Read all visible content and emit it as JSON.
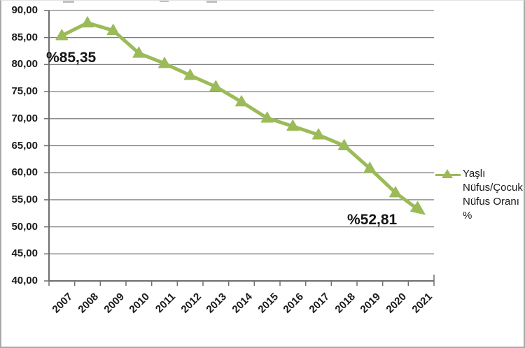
{
  "chart_data": {
    "type": "line",
    "title": "",
    "categories": [
      "2007",
      "2008",
      "2009",
      "2010",
      "2011",
      "2012",
      "2013",
      "2014",
      "2015",
      "2016",
      "2017",
      "2018",
      "2019",
      "2020",
      "2021"
    ],
    "series": [
      {
        "name": "Yaşlı Nüfus/Çocuk Nüfus Oranı %",
        "values": [
          85.35,
          87.7,
          86.3,
          82.1,
          80.2,
          78.0,
          75.9,
          73.1,
          70.1,
          68.6,
          67.0,
          65.0,
          60.8,
          56.3,
          52.81
        ]
      }
    ],
    "xlabel": "",
    "ylabel": "",
    "ylim": [
      40,
      90
    ],
    "ytick_step": 5,
    "ytick_values": [
      90,
      85,
      80,
      75,
      70,
      65,
      60,
      55,
      50,
      45,
      40
    ],
    "ytick_labels": [
      "90,00",
      "85,00",
      "80,00",
      "75,00",
      "70,00",
      "65,00",
      "60,00",
      "55,00",
      "50,00",
      "45,00",
      "40,00"
    ],
    "grid": "horizontal",
    "legend_position": "right",
    "line_color": "#9bbb59",
    "grid_color": "#7f7f7f",
    "axis_color": "#6e6e6e",
    "marker": "triangle-up",
    "end_cap": "arrowhead",
    "annotations": [
      {
        "text": "%85,35",
        "at_category": "2007"
      },
      {
        "text": "%52,81",
        "at_category": "2021"
      }
    ]
  },
  "legend": {
    "label": "Yaşlı\nNüfus/Çocuk\nNüfus Oranı\n%"
  },
  "annotations": {
    "start_label": "%85,35",
    "end_label": "%52,81"
  }
}
